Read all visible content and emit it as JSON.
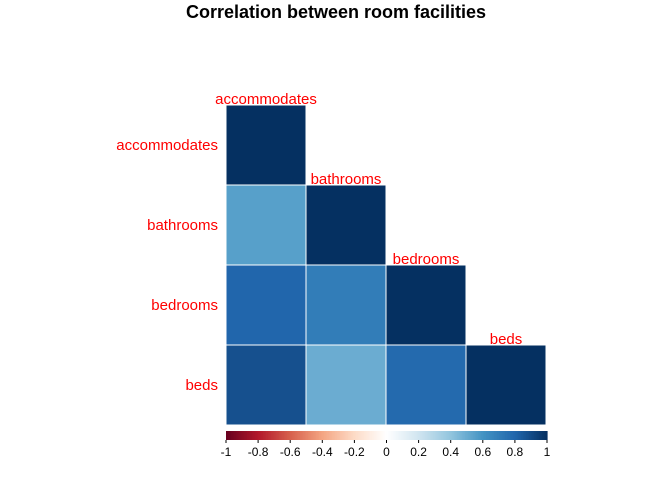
{
  "chart_data": {
    "type": "heatmap",
    "title": "Correlation between room facilities",
    "matrix_shape": "lower-triangle",
    "variables": [
      "accommodates",
      "bathrooms",
      "bedrooms",
      "beds"
    ],
    "values": [
      [
        1.0,
        null,
        null,
        null
      ],
      [
        0.55,
        1.0,
        null,
        null
      ],
      [
        0.8,
        0.7,
        1.0,
        null
      ],
      [
        0.88,
        0.5,
        0.78,
        1.0
      ]
    ],
    "label_color": "#ff0000",
    "colorbar": {
      "range": [
        -1,
        1
      ],
      "ticks": [
        "-1",
        "-0.8",
        "-0.6",
        "-0.4",
        "-0.2",
        "0",
        "0.2",
        "0.4",
        "0.6",
        "0.8",
        "1"
      ],
      "palette": [
        "#67001f",
        "#b2182b",
        "#d6604d",
        "#f4a582",
        "#fddbc7",
        "#ffffff",
        "#d1e5f0",
        "#92c5de",
        "#4393c3",
        "#2166ac",
        "#053061"
      ]
    }
  }
}
